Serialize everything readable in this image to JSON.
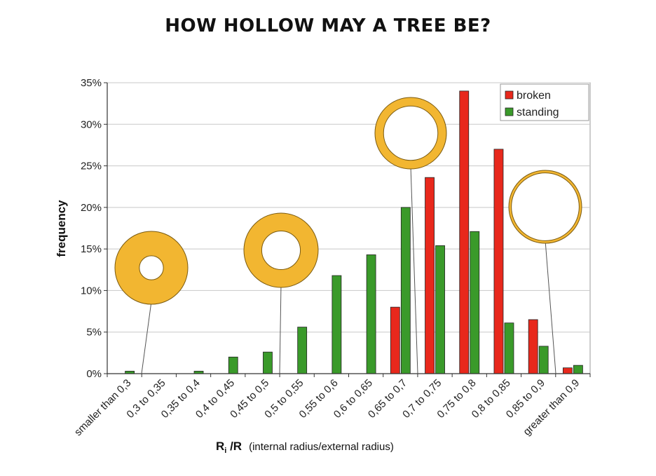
{
  "title": "HOW HOLLOW MAY A TREE BE?",
  "chart_data": {
    "type": "bar",
    "title": "HOW HOLLOW MAY A TREE BE?",
    "ylabel": "frequency",
    "xlabel_main": "R",
    "xlabel_sub": "i",
    "xlabel_rest": " /R",
    "xlabel_note": "(internal radius/external radius)",
    "ylim": [
      0,
      35
    ],
    "yticks": [
      0,
      5,
      10,
      15,
      20,
      25,
      30,
      35
    ],
    "ytick_labels": [
      "0%",
      "5%",
      "10%",
      "15%",
      "20%",
      "25%",
      "30%",
      "35%"
    ],
    "grid": true,
    "legend_position": "top-right",
    "categories": [
      "smaller than 0,3",
      "0,3 to 0,35",
      "0,35 to 0,4",
      "0,4 to 0,45",
      "0,45 to 0,5",
      "0,5 to 0,55",
      "0,55 to 0,6",
      "0,6 to 0,65",
      "0,65 to 0,7",
      "0,7 to 0,75",
      "0,75 to 0,8",
      "0,8 to 0,85",
      "0,85 to 0,9",
      "greater than  0,9"
    ],
    "series": [
      {
        "name": "broken",
        "color": "#e8281c",
        "values": [
          0,
          0,
          0,
          0,
          0,
          0,
          0,
          0,
          8.0,
          23.6,
          34.0,
          27.0,
          6.5,
          0.7
        ]
      },
      {
        "name": "standing",
        "color": "#3a9a2a",
        "values": [
          0.3,
          0,
          0.3,
          2.0,
          2.6,
          5.6,
          11.8,
          14.3,
          20.0,
          15.4,
          17.1,
          6.1,
          3.3,
          1.0
        ]
      }
    ],
    "ring_fill_color": "#f2b631",
    "ring_illustrations": [
      {
        "ratio": 0.33,
        "category_index": 1
      },
      {
        "ratio": 0.52,
        "category_index": 5
      },
      {
        "ratio": 0.76,
        "category_index": 9
      },
      {
        "ratio": 0.93,
        "category_index": 12
      }
    ]
  }
}
